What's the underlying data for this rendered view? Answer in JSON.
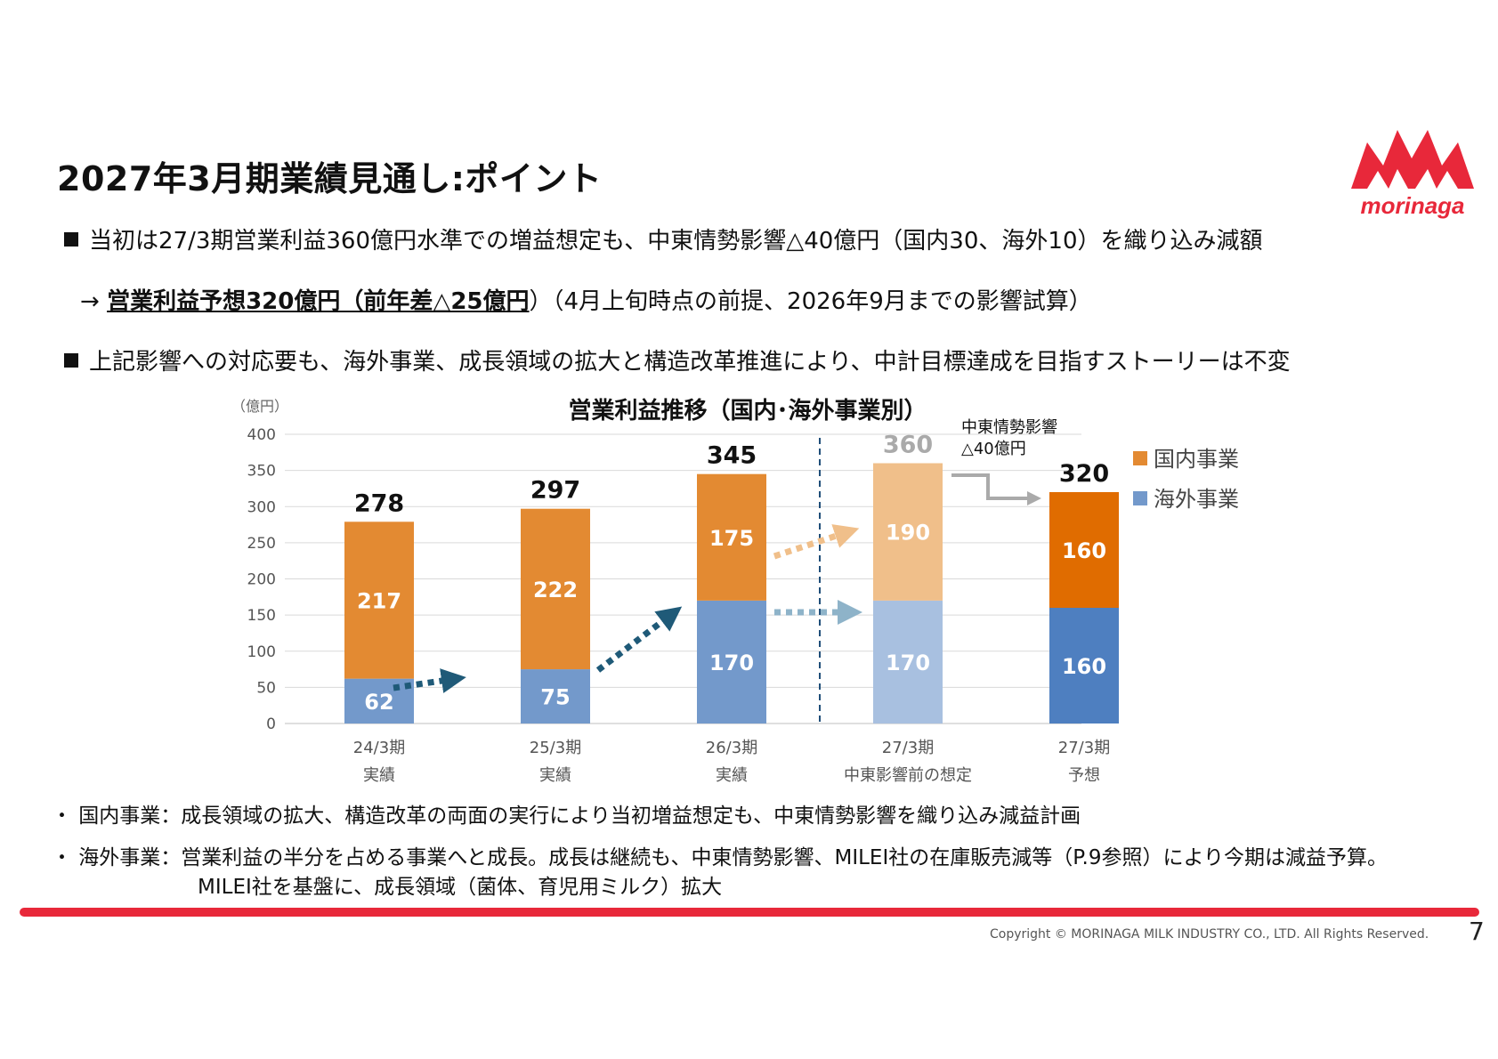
{
  "title": "2027年3月期業績見通し:ポイント",
  "bullets": {
    "b1": "当初は27/3期営業利益360億円水準での増益想定も、中東情勢影響△40億円（国内30、海外10）を織り込み減額",
    "b2_arrow": "→ ",
    "b2_emph": "営業利益予想320億円（前年差△25億円",
    "b2_rest": "）（4月上旬時点の前提、2026年9月までの影響試算）",
    "b3": "上記影響への対応要も、海外事業、成長領域の拡大と構造改革推進により、中計目標達成を目指すストーリーは不変"
  },
  "notes": {
    "n1": "・ 国内事業：成長領域の拡大、構造改革の両面の実行により当初増益想定も、中東情勢影響を織り込み減益計画",
    "n2": "・ 海外事業：営業利益の半分を占める事業へと成長。成長は継続も、中東情勢影響、MILEI社の在庫販売減等（P.9参照）により今期は減益予算。",
    "n2b": "MILEI社を基盤に、成長領域（菌体、育児用ミルク）拡大"
  },
  "footer": {
    "copyright": "Copyright © MORINAGA MILK INDUSTRY CO., LTD. All Rights Reserved.",
    "page": "7"
  },
  "logo": {
    "text": "morinaga",
    "color": "#e8283a"
  },
  "colors": {
    "domestic": "#e38a32",
    "overseas": "#7399cb",
    "domestic_light": "#f0bf8a",
    "overseas_light": "#a8c0e0",
    "domestic_dark": "#e06c00",
    "overseas_dark": "#4e7fc0",
    "arrow_dark": "#1f5a78",
    "arrow_light_orange": "#f0bf8a",
    "arrow_light_blue": "#8eb3c9",
    "gray_arrow": "#aaaaaa"
  },
  "chart_data": {
    "type": "bar",
    "stacked": true,
    "title": "営業利益推移（国内･海外事業別）",
    "ylabel": "（億円）",
    "ylim": [
      0,
      400
    ],
    "yticks": [
      0,
      50,
      100,
      150,
      200,
      250,
      300,
      350,
      400
    ],
    "grid": true,
    "legend_position": "right",
    "categories": [
      [
        "24/3期",
        "実績"
      ],
      [
        "25/3期",
        "実績"
      ],
      [
        "26/3期",
        "実績"
      ],
      [
        "27/3期",
        "中東影響前の想定"
      ],
      [
        "27/3期",
        "予想"
      ]
    ],
    "series": [
      {
        "name": "海外事業",
        "values": [
          62,
          75,
          170,
          170,
          160
        ]
      },
      {
        "name": "国内事業",
        "values": [
          217,
          222,
          175,
          190,
          160
        ]
      }
    ],
    "totals": [
      278,
      297,
      345,
      360,
      320
    ],
    "annotation": [
      "中東情勢影響",
      "△40億円"
    ]
  }
}
